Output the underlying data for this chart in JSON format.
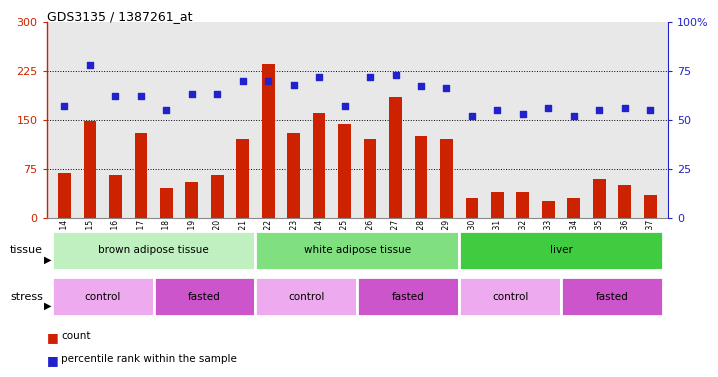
{
  "title": "GDS3135 / 1387261_at",
  "samples": [
    "GSM184414",
    "GSM184415",
    "GSM184416",
    "GSM184417",
    "GSM184418",
    "GSM184419",
    "GSM184420",
    "GSM184421",
    "GSM184422",
    "GSM184423",
    "GSM184424",
    "GSM184425",
    "GSM184426",
    "GSM184427",
    "GSM184428",
    "GSM184429",
    "GSM184430",
    "GSM184431",
    "GSM184432",
    "GSM184433",
    "GSM184434",
    "GSM184435",
    "GSM184436",
    "GSM184437"
  ],
  "counts": [
    68,
    148,
    65,
    130,
    45,
    55,
    65,
    120,
    235,
    130,
    160,
    143,
    120,
    185,
    125,
    120,
    30,
    40,
    40,
    25,
    30,
    60,
    50,
    35
  ],
  "percentile": [
    57,
    78,
    62,
    62,
    55,
    63,
    63,
    70,
    70,
    68,
    72,
    57,
    72,
    73,
    67,
    66,
    52,
    55,
    53,
    56,
    52,
    55,
    56,
    55
  ],
  "tissue_groups": [
    {
      "label": "brown adipose tissue",
      "start": 0,
      "end": 8,
      "color": "#c0f0c0"
    },
    {
      "label": "white adipose tissue",
      "start": 8,
      "end": 16,
      "color": "#80e080"
    },
    {
      "label": "liver",
      "start": 16,
      "end": 24,
      "color": "#40cc40"
    }
  ],
  "stress_groups": [
    {
      "label": "control",
      "start": 0,
      "end": 4,
      "color": "#eeaaee"
    },
    {
      "label": "fasted",
      "start": 4,
      "end": 8,
      "color": "#cc55cc"
    },
    {
      "label": "control",
      "start": 8,
      "end": 12,
      "color": "#eeaaee"
    },
    {
      "label": "fasted",
      "start": 12,
      "end": 16,
      "color": "#cc55cc"
    },
    {
      "label": "control",
      "start": 16,
      "end": 20,
      "color": "#eeaaee"
    },
    {
      "label": "fasted",
      "start": 20,
      "end": 24,
      "color": "#cc55cc"
    }
  ],
  "bar_color": "#cc2200",
  "dot_color": "#2222cc",
  "ylim_left": [
    0,
    300
  ],
  "ylim_right": [
    0,
    100
  ],
  "yticks_left": [
    0,
    75,
    150,
    225,
    300
  ],
  "yticks_right": [
    0,
    25,
    50,
    75,
    100
  ],
  "hlines": [
    75,
    150,
    225
  ],
  "plot_bg": "#e8e8e8",
  "fig_bg": "#ffffff"
}
